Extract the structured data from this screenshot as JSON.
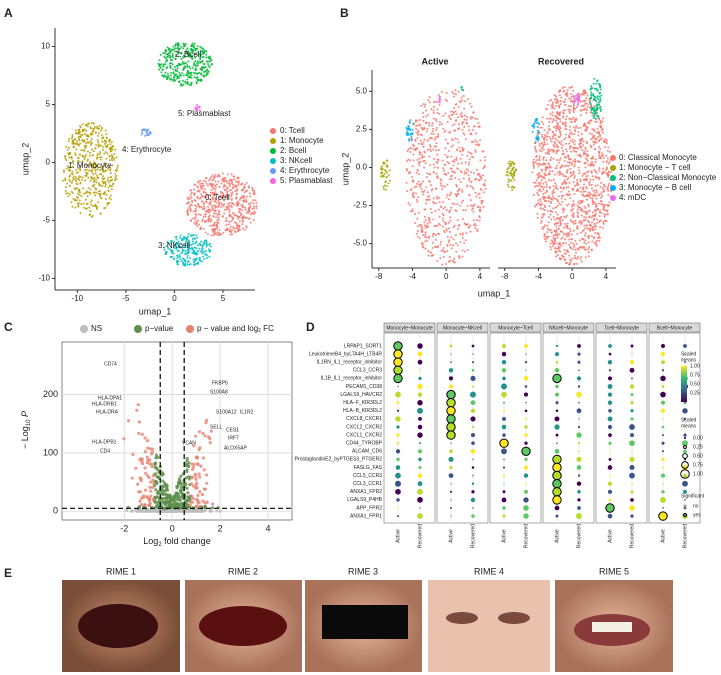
{
  "panels": {
    "A": {
      "label": "A",
      "xlabel": "umap_1",
      "ylabel": "umap_2",
      "xticks": [
        -10,
        -5,
        0,
        5
      ],
      "yticks": [
        -10,
        -5,
        0,
        5,
        10
      ],
      "xlim": [
        -12.3,
        8.3
      ],
      "ylim": [
        -11,
        11.6
      ],
      "legend": [
        {
          "name": "0: Tcell",
          "color": "#F8766D"
        },
        {
          "name": "1: Monocyte",
          "color": "#B79F00"
        },
        {
          "name": "2: Bcell",
          "color": "#00BA38"
        },
        {
          "name": "3: NKcell",
          "color": "#00BFC4"
        },
        {
          "name": "4: Erythrocyte",
          "color": "#619CFF"
        },
        {
          "name": "5: Plasmablast",
          "color": "#F564E3"
        }
      ],
      "cluster_labels": [
        "2: Bcell",
        "5: Plasmablast",
        "4: Erythrocyte",
        "1: Monocyte",
        "0: Tcell",
        "3: NKcell"
      ]
    },
    "B": {
      "label": "B",
      "xlabel": "umap_1",
      "ylabel": "umap_2",
      "facets": [
        "Active",
        "Recovered"
      ],
      "xticks": [
        -8,
        -4,
        0,
        4
      ],
      "yticks": [
        {
          "value": -5,
          "label": "-5.0"
        },
        {
          "value": -2.5,
          "label": "-2.5"
        },
        {
          "value": 0,
          "label": "0.0"
        },
        {
          "value": 2.5,
          "label": "2.5"
        },
        {
          "value": 5,
          "label": "5.0"
        }
      ],
      "xlim": [
        -8.8,
        5.2
      ],
      "ylim": [
        -6.6,
        6.4
      ],
      "legend": [
        {
          "name": "0: Classical Monocyte",
          "color": "#F8766D"
        },
        {
          "name": "1: Monocyte − T cell",
          "color": "#A3A500"
        },
        {
          "name": "2: Non−Classical Monocyte",
          "color": "#00BF7D"
        },
        {
          "name": "3: Monocyte − B cell",
          "color": "#00B0F6"
        },
        {
          "name": "4: mDC",
          "color": "#E76BF3"
        }
      ]
    },
    "C": {
      "label": "C",
      "xlabel": [
        "Log",
        "2",
        " fold change"
      ],
      "ylabel": [
        "− Log",
        "10",
        " P"
      ],
      "xticks": [
        -2,
        0,
        2,
        4
      ],
      "yticks": [
        0,
        100,
        200
      ],
      "xlim": [
        -4.6,
        5
      ],
      "ylim": [
        -15,
        290
      ],
      "legend": [
        {
          "name": "NS",
          "color": "#BDBDBD"
        },
        {
          "name": "p−value",
          "color": "#5E8F4C"
        },
        {
          "name": "p − value and log",
          "color": "#E7826F",
          "sub": "2",
          "tail": " FC"
        }
      ],
      "genes": [
        "CD74",
        "HLA-DPA1",
        "HLA-DRB1",
        "HLA-DRA",
        "HLA-DPB1",
        "CD4",
        "FKBP5",
        "S100A8",
        "S100A12",
        "IL1R2",
        "SELL",
        "CES1",
        "IRF7",
        "ALOX5AP",
        "VCAN"
      ]
    },
    "D": {
      "label": "D",
      "groups": [
        "Monocyte~Monocyte",
        "Monocyte~NKcell",
        "Monocyte~Tcell",
        "NKcell~Monocyte",
        "Tcell~Monocyte",
        "Bcell~Monocyte"
      ],
      "columns": [
        "Active",
        "Recovered"
      ],
      "rows": [
        "LRPAP1_SORT1",
        "LeukotrieneB4_byLTA4H_LTB4R",
        "IL1RN_IL1_receptor_inhibitor",
        "CCL3_CCR3",
        "IL1B_IL1_receptor_inhibitor",
        "PECAM1_CD38",
        "LGALS9_HAVCR2",
        "HLA−F_KIR3DL2",
        "HLA−B_KIR3DL2",
        "CXCL8_CXCR1",
        "CXCL2_CXCR2",
        "CXCL1_CXCR2",
        "CD44_TYROBP",
        "ALCAM_CD6",
        "ProstaglandinE2_byPTGES3_PTGER2",
        "FASLG_FAS",
        "CCL5_CCR3",
        "CCL3_CCR1",
        "ANXA1_FPR2",
        "LGALS9_P4HB",
        "APP_FPR2",
        "ANXA1_FPR1"
      ],
      "color_title": [
        "Scaled",
        "means"
      ],
      "color_ticks": [
        {
          "value": 1,
          "label": "1.00"
        },
        {
          "value": 0.75,
          "label": "0.75"
        },
        {
          "value": 0.5,
          "label": "0.50"
        },
        {
          "value": 0.25,
          "label": "0.25"
        }
      ],
      "size_title": [
        "Scaled",
        "means"
      ],
      "size_ticks": [
        {
          "value": 0,
          "label": "0.00"
        },
        {
          "value": 0.25,
          "label": "0.25"
        },
        {
          "value": 0.5,
          "label": "0.50"
        },
        {
          "value": 0.75,
          "label": "0.75"
        },
        {
          "value": 1,
          "label": "1.00"
        }
      ],
      "sig_title": "Significant",
      "sig_levels": [
        "no",
        "yes"
      ]
    },
    "E": {
      "label": "E",
      "photos": [
        "RIME 1",
        "RIME 2",
        "RIME 3",
        "RIME 4",
        "RIME 5"
      ]
    }
  }
}
